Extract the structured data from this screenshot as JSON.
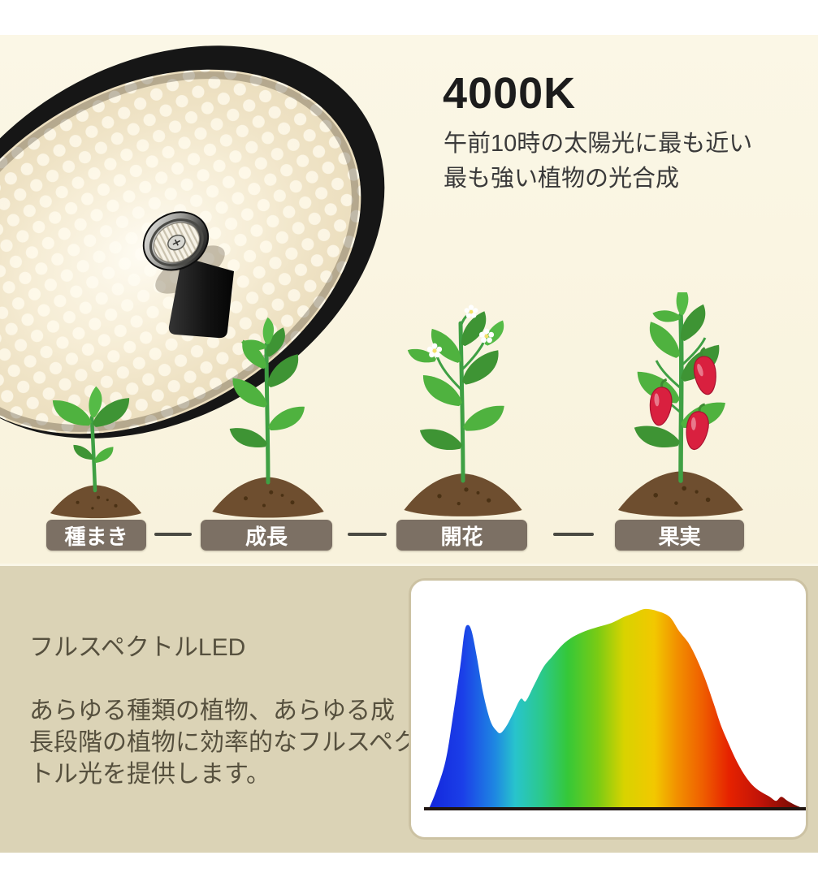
{
  "hero": {
    "title": "4000K",
    "subtitle_lines": [
      "午前10時の太陽光に最も近い",
      "最も強い植物の光合成"
    ]
  },
  "illustrations": {
    "lamp": "led-grow-light-disc-lamp",
    "stage_plants": [
      "seedling-sprout",
      "young-growing-plant",
      "flowering-plant",
      "pepper-plant-with-red-fruit"
    ],
    "spectrum": "full-spectrum-light-distribution-curve"
  },
  "stages": {
    "items": [
      {
        "label": "種まき"
      },
      {
        "label": "成長"
      },
      {
        "label": "開花"
      },
      {
        "label": "果実"
      }
    ]
  },
  "spectrum_section": {
    "heading": "フルスペクトルLED",
    "body": "あらゆる種類の植物、あらゆる成長段階の植物に効率的なフルスペクトル光を提供します。"
  },
  "colors": {
    "background_top": "#F9F4DF",
    "background_bottom": "#DBD3B6",
    "badge_background": "#7C7064",
    "badge_text": "#FFFFFF",
    "connector": "#4A4A42",
    "title_text": "#1C1C1C",
    "subtitle_text": "#3A3A3A",
    "body_text": "#56503E",
    "card_border": "#CCC2A3",
    "card_background": "#FFFFFF"
  },
  "chart_data": {
    "type": "area",
    "description": "Spectral power distribution of the full-spectrum 4000K LED (unlabeled axes, rainbow-filled curve)",
    "title": "",
    "xlabel": "",
    "ylabel": "",
    "legend": "none",
    "grid": false,
    "axes_shown": false,
    "x_range_nm": [
      400,
      760
    ],
    "y_range_pct": [
      0,
      100
    ],
    "wavelength_nm": [
      400,
      407,
      416,
      423,
      430,
      434,
      437,
      441,
      446,
      452,
      459,
      465,
      469,
      475,
      481,
      488,
      493,
      501,
      510,
      518,
      528,
      538,
      550,
      562,
      575,
      587,
      597,
      607,
      619,
      631,
      640,
      649,
      657,
      665,
      673,
      680,
      688,
      696,
      704,
      712,
      720,
      727,
      733,
      738,
      744,
      751,
      760
    ],
    "relative_intensity_pct": [
      0,
      9,
      24,
      46,
      71,
      88,
      92,
      89,
      76,
      58,
      44,
      39,
      38,
      42,
      48,
      55,
      54,
      62,
      71,
      76,
      82,
      86,
      89,
      91,
      93,
      96,
      98,
      100,
      99,
      96,
      89,
      83,
      75,
      65,
      53,
      42,
      32,
      23,
      16,
      11,
      8,
      6,
      4,
      6,
      4,
      2,
      0
    ],
    "baseline_color": "#201511",
    "gradient_stops": [
      {
        "offset": 0.0,
        "color": "#1326DC"
      },
      {
        "offset": 0.09,
        "color": "#1B3FE8"
      },
      {
        "offset": 0.175,
        "color": "#1E86E2"
      },
      {
        "offset": 0.23,
        "color": "#28C4CC"
      },
      {
        "offset": 0.3,
        "color": "#2BC98C"
      },
      {
        "offset": 0.37,
        "color": "#35C838"
      },
      {
        "offset": 0.45,
        "color": "#7ACB14"
      },
      {
        "offset": 0.52,
        "color": "#D8D300"
      },
      {
        "offset": 0.6,
        "color": "#F2C800"
      },
      {
        "offset": 0.66,
        "color": "#F29100"
      },
      {
        "offset": 0.73,
        "color": "#EF5E00"
      },
      {
        "offset": 0.8,
        "color": "#E62200"
      },
      {
        "offset": 0.88,
        "color": "#C21408"
      },
      {
        "offset": 0.95,
        "color": "#8C0D05"
      },
      {
        "offset": 1.0,
        "color": "#5F0A04"
      }
    ]
  }
}
